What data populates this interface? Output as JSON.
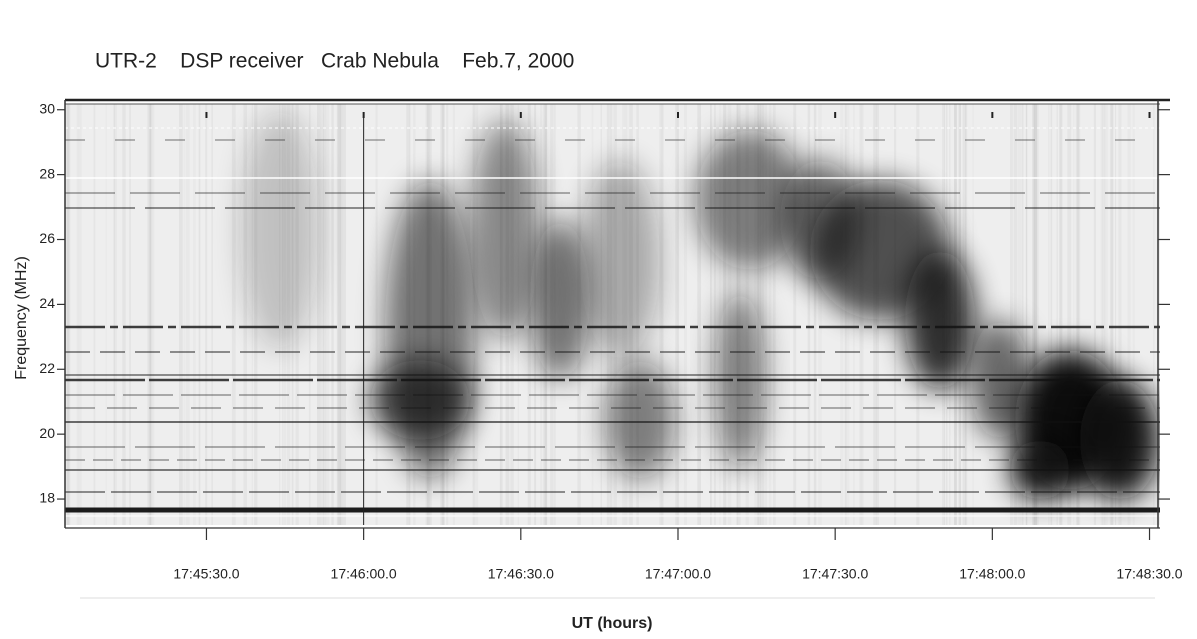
{
  "chart_data": {
    "type": "spectrogram",
    "title": "UTR-2    DSP receiver   Crab Nebula    Feb.7, 2000",
    "xlabel": "UT (hours)",
    "ylabel": "Frequency (MHz)",
    "xlim": [
      63903,
      64112
    ],
    "xticks": [
      {
        "value": 63930,
        "label": "17:45:30.0"
      },
      {
        "value": 63960,
        "label": "17:46:00.0"
      },
      {
        "value": 63990,
        "label": "17:46:30.0"
      },
      {
        "value": 64020,
        "label": "17:47:00.0"
      },
      {
        "value": 64050,
        "label": "17:47:30.0"
      },
      {
        "value": 64080,
        "label": "17:48:00.0"
      },
      {
        "value": 64110,
        "label": "17:48:30.0"
      }
    ],
    "ylim": [
      17.2,
      30.3
    ],
    "yticks": [
      18,
      20,
      22,
      24,
      26,
      28,
      30
    ]
  }
}
